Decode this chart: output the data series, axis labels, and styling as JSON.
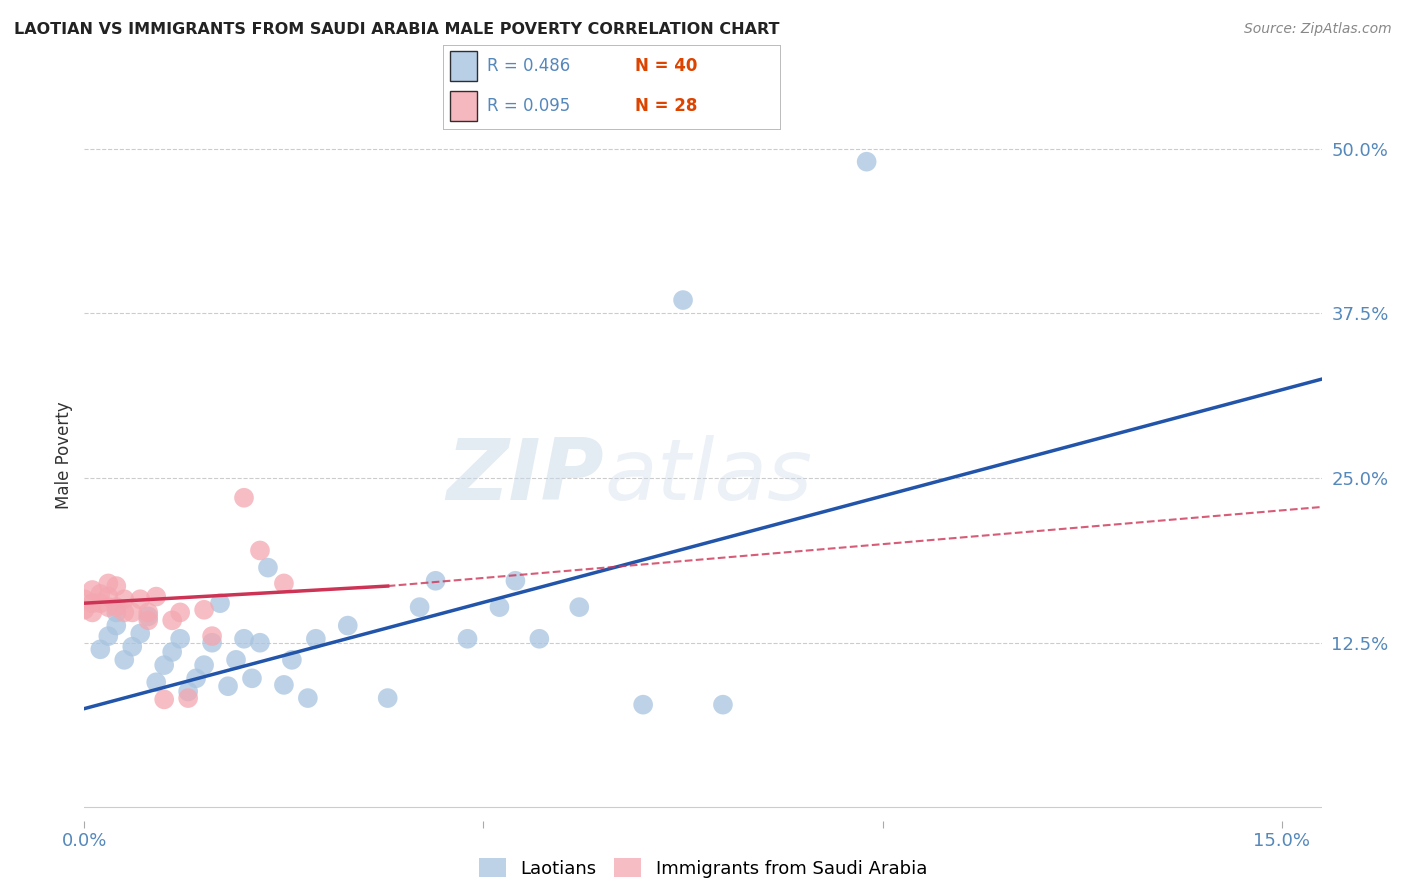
{
  "title": "LAOTIAN VS IMMIGRANTS FROM SAUDI ARABIA MALE POVERTY CORRELATION CHART",
  "source": "Source: ZipAtlas.com",
  "ylabel": "Male Poverty",
  "xlim": [
    0.0,
    0.155
  ],
  "ylim": [
    -0.01,
    0.545
  ],
  "xticks": [
    0.0,
    0.05,
    0.1,
    0.15
  ],
  "xtick_labels": [
    "0.0%",
    "",
    "",
    "15.0%"
  ],
  "yticks": [
    0.0,
    0.125,
    0.25,
    0.375,
    0.5
  ],
  "ytick_labels": [
    "",
    "12.5%",
    "25.0%",
    "37.5%",
    "50.0%"
  ],
  "watermark_zip": "ZIP",
  "watermark_atlas": "atlas",
  "legend_blue_r": "R = 0.486",
  "legend_blue_n": "N = 40",
  "legend_pink_r": "R = 0.095",
  "legend_pink_n": "N = 28",
  "blue_color": "#a8c4e0",
  "pink_color": "#f4a7b0",
  "blue_line_color": "#2255aa",
  "pink_line_color": "#cc3355",
  "blue_scatter": [
    [
      0.002,
      0.12
    ],
    [
      0.003,
      0.13
    ],
    [
      0.004,
      0.138
    ],
    [
      0.004,
      0.148
    ],
    [
      0.005,
      0.112
    ],
    [
      0.006,
      0.122
    ],
    [
      0.007,
      0.132
    ],
    [
      0.008,
      0.145
    ],
    [
      0.009,
      0.095
    ],
    [
      0.01,
      0.108
    ],
    [
      0.011,
      0.118
    ],
    [
      0.012,
      0.128
    ],
    [
      0.013,
      0.088
    ],
    [
      0.014,
      0.098
    ],
    [
      0.015,
      0.108
    ],
    [
      0.016,
      0.125
    ],
    [
      0.017,
      0.155
    ],
    [
      0.018,
      0.092
    ],
    [
      0.019,
      0.112
    ],
    [
      0.02,
      0.128
    ],
    [
      0.021,
      0.098
    ],
    [
      0.022,
      0.125
    ],
    [
      0.023,
      0.182
    ],
    [
      0.025,
      0.093
    ],
    [
      0.026,
      0.112
    ],
    [
      0.028,
      0.083
    ],
    [
      0.029,
      0.128
    ],
    [
      0.033,
      0.138
    ],
    [
      0.038,
      0.083
    ],
    [
      0.042,
      0.152
    ],
    [
      0.044,
      0.172
    ],
    [
      0.048,
      0.128
    ],
    [
      0.052,
      0.152
    ],
    [
      0.054,
      0.172
    ],
    [
      0.057,
      0.128
    ],
    [
      0.062,
      0.152
    ],
    [
      0.07,
      0.078
    ],
    [
      0.075,
      0.385
    ],
    [
      0.08,
      0.078
    ],
    [
      0.098,
      0.49
    ]
  ],
  "pink_scatter": [
    [
      0.0,
      0.15
    ],
    [
      0.0,
      0.158
    ],
    [
      0.001,
      0.148
    ],
    [
      0.001,
      0.155
    ],
    [
      0.001,
      0.165
    ],
    [
      0.002,
      0.155
    ],
    [
      0.002,
      0.162
    ],
    [
      0.003,
      0.152
    ],
    [
      0.003,
      0.16
    ],
    [
      0.003,
      0.17
    ],
    [
      0.004,
      0.152
    ],
    [
      0.004,
      0.168
    ],
    [
      0.005,
      0.148
    ],
    [
      0.005,
      0.158
    ],
    [
      0.006,
      0.148
    ],
    [
      0.007,
      0.158
    ],
    [
      0.008,
      0.142
    ],
    [
      0.008,
      0.148
    ],
    [
      0.009,
      0.16
    ],
    [
      0.01,
      0.082
    ],
    [
      0.011,
      0.142
    ],
    [
      0.012,
      0.148
    ],
    [
      0.013,
      0.083
    ],
    [
      0.015,
      0.15
    ],
    [
      0.016,
      0.13
    ],
    [
      0.02,
      0.235
    ],
    [
      0.022,
      0.195
    ],
    [
      0.025,
      0.17
    ]
  ],
  "background_color": "#ffffff",
  "grid_color": "#cccccc"
}
